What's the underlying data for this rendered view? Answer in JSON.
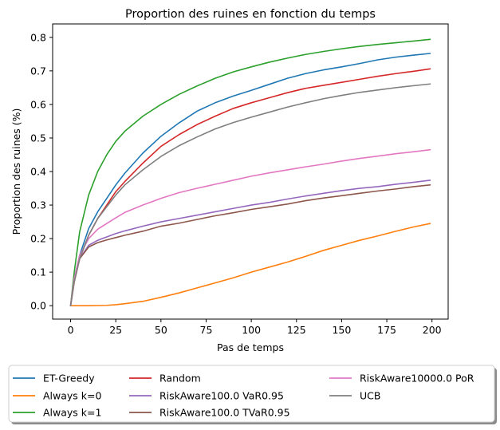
{
  "chart_data": {
    "type": "line",
    "title": "Proportion des ruines en fonction du temps",
    "xlabel": "Pas de temps",
    "ylabel": "Proportion des ruines (%)",
    "xlim": [
      -9.95,
      208.95
    ],
    "ylim": [
      -0.04,
      0.84
    ],
    "xticks": [
      0,
      25,
      50,
      75,
      100,
      125,
      150,
      175,
      200
    ],
    "yticks": [
      0.0,
      0.1,
      0.2,
      0.3,
      0.4,
      0.5,
      0.6,
      0.7,
      0.8
    ],
    "xtick_labels": [
      "0",
      "25",
      "50",
      "75",
      "100",
      "125",
      "150",
      "175",
      "200"
    ],
    "ytick_labels": [
      "0.0",
      "0.1",
      "0.2",
      "0.3",
      "0.4",
      "0.5",
      "0.6",
      "0.7",
      "0.8"
    ],
    "grid": false,
    "legend_position": "bottom-center",
    "legend_columns": 3,
    "series": [
      {
        "name": "ET-Greedy",
        "color": "#1f77b4",
        "x": [
          0,
          2,
          5,
          10,
          15,
          20,
          25,
          30,
          40,
          50,
          60,
          70,
          80,
          90,
          100,
          110,
          120,
          130,
          140,
          150,
          160,
          170,
          180,
          190,
          199
        ],
        "y": [
          0.0,
          0.08,
          0.15,
          0.23,
          0.28,
          0.32,
          0.36,
          0.395,
          0.455,
          0.505,
          0.545,
          0.58,
          0.605,
          0.625,
          0.642,
          0.66,
          0.678,
          0.692,
          0.703,
          0.712,
          0.722,
          0.733,
          0.741,
          0.747,
          0.752
        ]
      },
      {
        "name": "Always k=0",
        "color": "#ff7f0e",
        "x": [
          0,
          10,
          20,
          25,
          30,
          40,
          50,
          60,
          70,
          80,
          90,
          100,
          110,
          120,
          130,
          140,
          150,
          160,
          170,
          180,
          190,
          199
        ],
        "y": [
          0.0,
          0.0,
          0.001,
          0.003,
          0.006,
          0.013,
          0.025,
          0.038,
          0.053,
          0.068,
          0.083,
          0.1,
          0.115,
          0.13,
          0.147,
          0.165,
          0.18,
          0.195,
          0.208,
          0.222,
          0.235,
          0.245
        ]
      },
      {
        "name": "Always k=1",
        "color": "#2ca02c",
        "x": [
          0,
          2,
          5,
          10,
          15,
          20,
          25,
          30,
          40,
          50,
          60,
          70,
          80,
          90,
          100,
          110,
          120,
          130,
          140,
          150,
          160,
          170,
          180,
          190,
          199
        ],
        "y": [
          0.0,
          0.1,
          0.22,
          0.33,
          0.4,
          0.45,
          0.49,
          0.52,
          0.565,
          0.6,
          0.63,
          0.655,
          0.678,
          0.697,
          0.712,
          0.726,
          0.738,
          0.749,
          0.758,
          0.766,
          0.773,
          0.779,
          0.784,
          0.789,
          0.794
        ]
      },
      {
        "name": "Random",
        "color": "#d62728",
        "x": [
          0,
          2,
          5,
          10,
          15,
          20,
          25,
          30,
          40,
          50,
          60,
          70,
          80,
          90,
          100,
          110,
          120,
          130,
          140,
          150,
          160,
          170,
          180,
          190,
          199
        ],
        "y": [
          0.0,
          0.07,
          0.14,
          0.21,
          0.26,
          0.3,
          0.34,
          0.37,
          0.425,
          0.475,
          0.51,
          0.54,
          0.565,
          0.588,
          0.605,
          0.62,
          0.635,
          0.648,
          0.657,
          0.666,
          0.675,
          0.684,
          0.692,
          0.699,
          0.706
        ]
      },
      {
        "name": "RiskAware100.0 VaR0.95",
        "color": "#9467bd",
        "x": [
          0,
          2,
          5,
          10,
          15,
          20,
          25,
          30,
          40,
          50,
          60,
          70,
          80,
          90,
          100,
          110,
          120,
          130,
          140,
          150,
          160,
          170,
          180,
          190,
          199
        ],
        "y": [
          0.0,
          0.08,
          0.14,
          0.18,
          0.195,
          0.205,
          0.215,
          0.223,
          0.237,
          0.25,
          0.26,
          0.27,
          0.28,
          0.29,
          0.3,
          0.308,
          0.318,
          0.327,
          0.335,
          0.343,
          0.35,
          0.355,
          0.362,
          0.368,
          0.374
        ]
      },
      {
        "name": "RiskAware100.0 TVaR0.95",
        "color": "#8c564b",
        "x": [
          0,
          2,
          5,
          10,
          15,
          20,
          25,
          30,
          40,
          50,
          60,
          70,
          80,
          90,
          100,
          110,
          120,
          130,
          140,
          150,
          160,
          170,
          180,
          190,
          199
        ],
        "y": [
          0.0,
          0.08,
          0.14,
          0.175,
          0.188,
          0.196,
          0.203,
          0.21,
          0.222,
          0.237,
          0.246,
          0.257,
          0.268,
          0.277,
          0.287,
          0.295,
          0.303,
          0.313,
          0.321,
          0.328,
          0.335,
          0.342,
          0.348,
          0.355,
          0.36
        ]
      },
      {
        "name": "RiskAware10000.0 PoR",
        "color": "#e377c2",
        "x": [
          0,
          2,
          5,
          10,
          15,
          20,
          25,
          30,
          40,
          50,
          60,
          70,
          80,
          90,
          100,
          110,
          120,
          130,
          140,
          150,
          160,
          170,
          180,
          190,
          199
        ],
        "y": [
          0.0,
          0.08,
          0.15,
          0.2,
          0.228,
          0.245,
          0.262,
          0.278,
          0.3,
          0.32,
          0.337,
          0.35,
          0.362,
          0.374,
          0.386,
          0.396,
          0.405,
          0.414,
          0.422,
          0.431,
          0.439,
          0.446,
          0.453,
          0.459,
          0.465
        ]
      },
      {
        "name": "UCB",
        "color": "#7f7f7f",
        "x": [
          0,
          2,
          5,
          10,
          15,
          20,
          25,
          30,
          40,
          50,
          60,
          70,
          80,
          90,
          100,
          110,
          120,
          130,
          140,
          150,
          160,
          170,
          180,
          190,
          199
        ],
        "y": [
          0.0,
          0.07,
          0.14,
          0.21,
          0.26,
          0.295,
          0.33,
          0.36,
          0.405,
          0.445,
          0.477,
          0.503,
          0.527,
          0.546,
          0.562,
          0.577,
          0.592,
          0.605,
          0.617,
          0.627,
          0.636,
          0.643,
          0.65,
          0.656,
          0.661
        ]
      }
    ]
  }
}
